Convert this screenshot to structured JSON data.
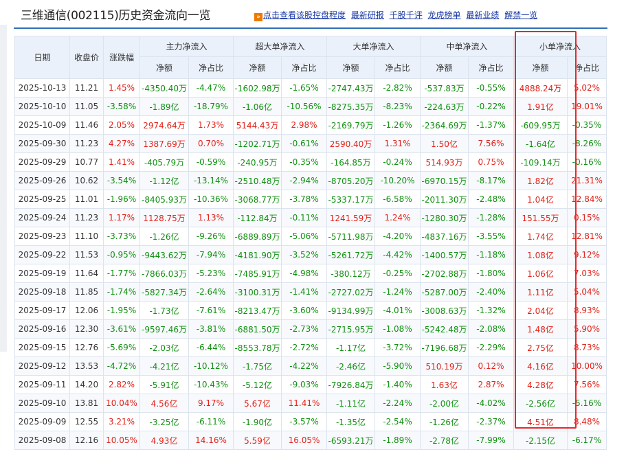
{
  "title": "三维通信(002115)历史资金流向一览",
  "nav_links": [
    "点击查看该股控盘程度",
    "最新研报",
    "千股千评",
    "龙虎榜单",
    "最新业绩",
    "解禁一览"
  ],
  "colors": {
    "up": "#e2231a",
    "down": "#119011",
    "highlight": "#e8262c",
    "header_bg": "#eaf1fb"
  },
  "table": {
    "header_top": [
      "日期",
      "收盘价",
      "涨跌幅",
      "主力净流入",
      "超大单净流入",
      "大单净流入",
      "中单净流入",
      "小单净流入"
    ],
    "header_sub": [
      "净额",
      "净占比",
      "净额",
      "净占比",
      "净额",
      "净占比",
      "净额",
      "净占比",
      "净额",
      "净占比"
    ],
    "rows": [
      [
        "2025-10-13",
        "11.21",
        "1.45%",
        "-4350.40万",
        "-4.47%",
        "-1602.98万",
        "-1.65%",
        "-2747.43万",
        "-2.82%",
        "-537.83万",
        "-0.55%",
        "4888.24万",
        "5.02%"
      ],
      [
        "2025-10-10",
        "11.05",
        "-3.58%",
        "-1.89亿",
        "-18.79%",
        "-1.06亿",
        "-10.56%",
        "-8275.35万",
        "-8.23%",
        "-224.63万",
        "-0.22%",
        "1.91亿",
        "19.01%"
      ],
      [
        "2025-10-09",
        "11.46",
        "2.05%",
        "2974.64万",
        "1.73%",
        "5144.43万",
        "2.98%",
        "-2169.79万",
        "-1.26%",
        "-2364.69万",
        "-1.37%",
        "-609.95万",
        "-0.35%"
      ],
      [
        "2025-09-30",
        "11.23",
        "4.27%",
        "1387.69万",
        "0.70%",
        "-1202.71万",
        "-0.61%",
        "2590.40万",
        "1.31%",
        "1.50亿",
        "7.56%",
        "-1.64亿",
        "-8.26%"
      ],
      [
        "2025-09-29",
        "10.77",
        "1.41%",
        "-405.79万",
        "-0.59%",
        "-240.95万",
        "-0.35%",
        "-164.85万",
        "-0.24%",
        "514.93万",
        "0.75%",
        "-109.14万",
        "-0.16%"
      ],
      [
        "2025-09-26",
        "10.62",
        "-3.54%",
        "-1.12亿",
        "-13.14%",
        "-2510.48万",
        "-2.94%",
        "-8705.20万",
        "-10.20%",
        "-6970.15万",
        "-8.17%",
        "1.82亿",
        "21.31%"
      ],
      [
        "2025-09-25",
        "11.01",
        "-1.96%",
        "-8405.93万",
        "-10.36%",
        "-3068.77万",
        "-3.78%",
        "-5337.17万",
        "-6.58%",
        "-2011.30万",
        "-2.48%",
        "1.04亿",
        "12.84%"
      ],
      [
        "2025-09-24",
        "11.23",
        "1.17%",
        "1128.75万",
        "1.13%",
        "-112.84万",
        "-0.11%",
        "1241.59万",
        "1.24%",
        "-1280.30万",
        "-1.28%",
        "151.55万",
        "0.15%"
      ],
      [
        "2025-09-23",
        "11.10",
        "-3.73%",
        "-1.26亿",
        "-9.26%",
        "-6889.89万",
        "-5.06%",
        "-5711.98万",
        "-4.20%",
        "-4837.16万",
        "-3.55%",
        "1.74亿",
        "12.81%"
      ],
      [
        "2025-09-22",
        "11.53",
        "-0.95%",
        "-9443.62万",
        "-7.94%",
        "-4181.90万",
        "-3.52%",
        "-5261.72万",
        "-4.42%",
        "-1400.57万",
        "-1.18%",
        "1.08亿",
        "9.12%"
      ],
      [
        "2025-09-19",
        "11.64",
        "-1.77%",
        "-7866.03万",
        "-5.23%",
        "-7485.91万",
        "-4.98%",
        "-380.12万",
        "-0.25%",
        "-2702.88万",
        "-1.80%",
        "1.06亿",
        "7.03%"
      ],
      [
        "2025-09-18",
        "11.85",
        "-1.74%",
        "-5827.34万",
        "-2.64%",
        "-3100.31万",
        "-1.41%",
        "-2727.02万",
        "-1.24%",
        "-5287.00万",
        "-2.40%",
        "1.11亿",
        "5.04%"
      ],
      [
        "2025-09-17",
        "12.06",
        "-1.95%",
        "-1.73亿",
        "-7.61%",
        "-8213.47万",
        "-3.60%",
        "-9134.99万",
        "-4.01%",
        "-3008.63万",
        "-1.32%",
        "2.04亿",
        "8.93%"
      ],
      [
        "2025-09-16",
        "12.30",
        "-3.61%",
        "-9597.46万",
        "-3.81%",
        "-6881.50万",
        "-2.73%",
        "-2715.95万",
        "-1.08%",
        "-5242.48万",
        "-2.08%",
        "1.48亿",
        "5.90%"
      ],
      [
        "2025-09-15",
        "12.76",
        "-5.69%",
        "-2.03亿",
        "-6.44%",
        "-8553.78万",
        "-2.72%",
        "-1.17亿",
        "-3.72%",
        "-7196.68万",
        "-2.29%",
        "2.75亿",
        "8.73%"
      ],
      [
        "2025-09-12",
        "13.53",
        "-4.72%",
        "-4.21亿",
        "-10.12%",
        "-1.75亿",
        "-4.22%",
        "-2.46亿",
        "-5.90%",
        "510.19万",
        "0.12%",
        "4.16亿",
        "10.00%"
      ],
      [
        "2025-09-11",
        "14.20",
        "2.82%",
        "-5.91亿",
        "-10.43%",
        "-5.12亿",
        "-9.03%",
        "-7926.84万",
        "-1.40%",
        "1.63亿",
        "2.87%",
        "4.28亿",
        "7.56%"
      ],
      [
        "2025-09-10",
        "13.81",
        "10.04%",
        "4.56亿",
        "9.17%",
        "5.67亿",
        "11.41%",
        "-1.11亿",
        "-2.24%",
        "-2.00亿",
        "-4.02%",
        "-2.56亿",
        "-5.16%"
      ],
      [
        "2025-09-09",
        "12.55",
        "3.21%",
        "-3.25亿",
        "-6.11%",
        "-1.90亿",
        "-3.57%",
        "-1.35亿",
        "-2.54%",
        "-1.26亿",
        "-2.37%",
        "4.51亿",
        "8.48%"
      ],
      [
        "2025-09-08",
        "12.16",
        "10.05%",
        "4.93亿",
        "14.16%",
        "5.59亿",
        "16.05%",
        "-6593.21万",
        "-1.89%",
        "-2.78亿",
        "-7.99%",
        "-2.15亿",
        "-6.17%"
      ]
    ]
  }
}
